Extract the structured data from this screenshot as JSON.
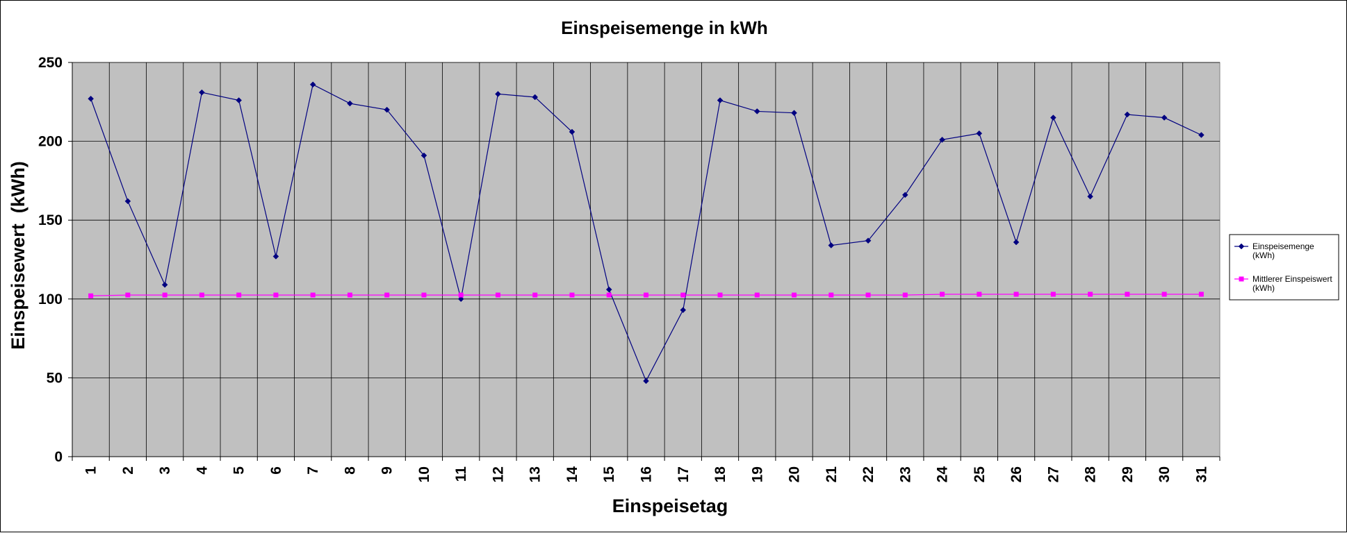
{
  "chart_data": {
    "type": "line",
    "title": "Einspeisemenge in kWh",
    "xlabel": "Einspeisetag",
    "ylabel": "Einspeisewert  (kWh)",
    "ylim": [
      0,
      250
    ],
    "yticks": [
      0,
      50,
      100,
      150,
      200,
      250
    ],
    "grid": true,
    "legend_position": "right",
    "plot_background": "#c0c0c0",
    "categories": [
      "1",
      "2",
      "3",
      "4",
      "5",
      "6",
      "7",
      "8",
      "9",
      "10",
      "11",
      "12",
      "13",
      "14",
      "15",
      "16",
      "17",
      "18",
      "19",
      "20",
      "21",
      "22",
      "23",
      "24",
      "25",
      "26",
      "27",
      "28",
      "29",
      "30",
      "31"
    ],
    "series": [
      {
        "name": "Einspeisemenge (kWh)",
        "legend_lines": [
          "Einspeisemenge",
          "(kWh)"
        ],
        "color": "#000080",
        "marker": "diamond",
        "values": [
          227,
          162,
          109,
          231,
          226,
          127,
          236,
          224,
          220,
          191,
          100,
          230,
          228,
          206,
          106,
          48,
          93,
          226,
          219,
          218,
          134,
          137,
          166,
          201,
          205,
          136,
          215,
          165,
          217,
          215,
          204
        ]
      },
      {
        "name": "Mittlerer Einspeiswert (kWh)",
        "legend_lines": [
          "Mittlerer Einspeiswert",
          "(kWh)"
        ],
        "color": "#ff00ff",
        "marker": "square",
        "values": [
          102,
          102.5,
          102.5,
          102.5,
          102.5,
          102.5,
          102.5,
          102.5,
          102.5,
          102.5,
          102.5,
          102.5,
          102.5,
          102.5,
          102.5,
          102.5,
          102.5,
          102.5,
          102.5,
          102.5,
          102.5,
          102.5,
          102.5,
          103,
          103,
          103,
          103,
          103,
          103,
          103,
          103
        ]
      }
    ]
  }
}
